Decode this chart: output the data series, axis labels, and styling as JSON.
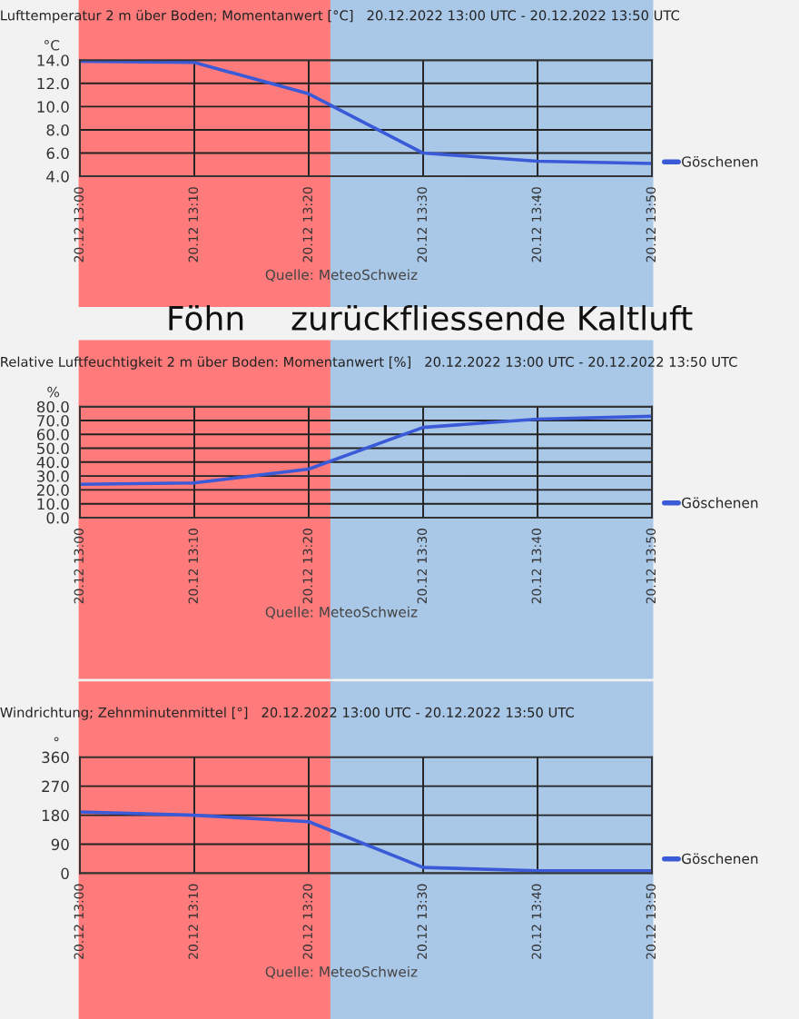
{
  "chart_data": [
    {
      "type": "line",
      "title": "Lufttemperatur 2 m über Boden; Momentanwert [°C]   20.12.2022 13:00 UTC - 20.12.2022 13:50 UTC",
      "ylabel": "°C",
      "x": [
        "2022-12-20T13:00",
        "2022-12-20T13:10",
        "2022-12-20T13:20",
        "2022-12-20T13:30",
        "2022-12-20T13:40",
        "2022-12-20T13:50"
      ],
      "series": [
        {
          "name": "Göschenen",
          "color": "#3a5ad8",
          "values": [
            13.9,
            13.8,
            11.1,
            6.0,
            5.3,
            5.1
          ]
        }
      ],
      "xlim": [
        "2022-12-20T13:00",
        "2022-12-20T13:50"
      ],
      "xticks": [
        {
          "value": "2022-12-20T13:00",
          "label": "20.12 13:00"
        },
        {
          "value": "2022-12-20T13:10",
          "label": "20.12 13:10"
        },
        {
          "value": "2022-12-20T13:20",
          "label": "20.12 13:20"
        },
        {
          "value": "2022-12-20T13:30",
          "label": "20.12 13:30"
        },
        {
          "value": "2022-12-20T13:40",
          "label": "20.12 13:40"
        },
        {
          "value": "2022-12-20T13:50",
          "label": "20.12 13:50"
        }
      ],
      "ylim": [
        4.0,
        14.0
      ],
      "yticks": [
        {
          "value": 4,
          "label": "4.0"
        },
        {
          "value": 6,
          "label": "6.0"
        },
        {
          "value": 8,
          "label": "8.0"
        },
        {
          "value": 10,
          "label": "10.0"
        },
        {
          "value": 12,
          "label": "12.0"
        },
        {
          "value": 14,
          "label": "14.0"
        }
      ],
      "bands": [
        {
          "axis": "x",
          "from": "2022-12-20T13:00",
          "to": "2022-12-20T13:22",
          "label": "Föhn",
          "color": "#ff7b7b"
        },
        {
          "axis": "x",
          "from": "2022-12-20T13:22",
          "to": "2022-12-20T13:50",
          "label": "zurückfliessende Kaltluft",
          "color": "#a9c7e7"
        }
      ],
      "annotations": [
        "Quelle: MeteoSchweiz"
      ],
      "grid": true,
      "legend": "right",
      "marker": "none",
      "line_style": "solid"
    },
    {
      "type": "line",
      "title": "Relative Luftfeuchtigkeit 2 m über Boden: Momentanwert [%]   20.12.2022 13:00 UTC - 20.12.2022 13:50 UTC",
      "ylabel": "%",
      "x": [
        "2022-12-20T13:00",
        "2022-12-20T13:10",
        "2022-12-20T13:20",
        "2022-12-20T13:30",
        "2022-12-20T13:40",
        "2022-12-20T13:50"
      ],
      "series": [
        {
          "name": "Göschenen",
          "color": "#3a5ad8",
          "values": [
            24,
            25,
            35,
            65,
            71,
            73
          ]
        }
      ],
      "xlim": [
        "2022-12-20T13:00",
        "2022-12-20T13:50"
      ],
      "xticks": [
        {
          "value": "2022-12-20T13:00",
          "label": "20.12 13:00"
        },
        {
          "value": "2022-12-20T13:10",
          "label": "20.12 13:10"
        },
        {
          "value": "2022-12-20T13:20",
          "label": "20.12 13:20"
        },
        {
          "value": "2022-12-20T13:30",
          "label": "20.12 13:30"
        },
        {
          "value": "2022-12-20T13:40",
          "label": "20.12 13:40"
        },
        {
          "value": "2022-12-20T13:50",
          "label": "20.12 13:50"
        }
      ],
      "ylim": [
        0,
        80
      ],
      "yticks": [
        {
          "value": 0,
          "label": "0.0"
        },
        {
          "value": 10,
          "label": "10.0"
        },
        {
          "value": 20,
          "label": "20.0"
        },
        {
          "value": 30,
          "label": "30.0"
        },
        {
          "value": 40,
          "label": "40.0"
        },
        {
          "value": 50,
          "label": "50.0"
        },
        {
          "value": 60,
          "label": "60.0"
        },
        {
          "value": 70,
          "label": "70.0"
        },
        {
          "value": 80,
          "label": "80.0"
        }
      ],
      "bands": [
        {
          "axis": "x",
          "from": "2022-12-20T13:00",
          "to": "2022-12-20T13:22",
          "color": "#ff7b7b"
        },
        {
          "axis": "x",
          "from": "2022-12-20T13:22",
          "to": "2022-12-20T13:50",
          "color": "#a9c7e7"
        }
      ],
      "annotations": [
        "Quelle: MeteoSchweiz"
      ],
      "grid": true,
      "legend": "right",
      "marker": "none",
      "line_style": "solid"
    },
    {
      "type": "line",
      "title": "Windrichtung; Zehnminutenmittel [°]   20.12.2022 13:00 UTC - 20.12.2022 13:50 UTC",
      "ylabel": "°",
      "x": [
        "2022-12-20T13:00",
        "2022-12-20T13:10",
        "2022-12-20T13:20",
        "2022-12-20T13:30",
        "2022-12-20T13:40",
        "2022-12-20T13:50"
      ],
      "series": [
        {
          "name": "Göschenen",
          "color": "#3a5ad8",
          "values": [
            190,
            180,
            160,
            18,
            8,
            8
          ]
        }
      ],
      "xlim": [
        "2022-12-20T13:00",
        "2022-12-20T13:50"
      ],
      "xticks": [
        {
          "value": "2022-12-20T13:00",
          "label": "20.12 13:00"
        },
        {
          "value": "2022-12-20T13:10",
          "label": "20.12 13:10"
        },
        {
          "value": "2022-12-20T13:20",
          "label": "20.12 13:20"
        },
        {
          "value": "2022-12-20T13:30",
          "label": "20.12 13:30"
        },
        {
          "value": "2022-12-20T13:40",
          "label": "20.12 13:40"
        },
        {
          "value": "2022-12-20T13:50",
          "label": "20.12 13:50"
        }
      ],
      "ylim": [
        0,
        360
      ],
      "yticks": [
        0,
        90,
        180,
        270,
        360
      ],
      "bands": [
        {
          "axis": "x",
          "from": "2022-12-20T13:00",
          "to": "2022-12-20T13:22",
          "color": "#ff7b7b"
        },
        {
          "axis": "x",
          "from": "2022-12-20T13:22",
          "to": "2022-12-20T13:50",
          "color": "#a9c7e7"
        }
      ],
      "annotations": [
        "Quelle: MeteoSchweiz"
      ],
      "grid": true,
      "legend": "right",
      "marker": "none",
      "line_style": "solid"
    }
  ]
}
